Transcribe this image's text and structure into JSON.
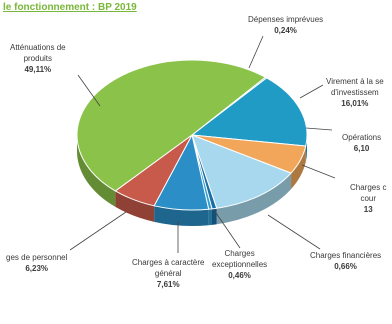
{
  "title": "le fonctionnement : BP 2019",
  "chart_data": {
    "type": "pie",
    "title": "le fonctionnement : BP 2019",
    "slices": [
      {
        "label": "Dépenses imprévues",
        "value": 0.24,
        "value_label": "0,24%",
        "color": "#1f8bbf"
      },
      {
        "label": "Virement à la section d'investissement",
        "value": 16.01,
        "value_label": "16,01%",
        "color": "#1f9bc5"
      },
      {
        "label": "Opérations d'ordre",
        "value": 6.1,
        "value_label": "6,10",
        "color": "#f2a65a"
      },
      {
        "label": "Charges de gestion courante",
        "value": 13.0,
        "value_label": "13",
        "color": "#a8d8ee"
      },
      {
        "label": "Charges financières",
        "value": 0.66,
        "value_label": "0,66%",
        "color": "#1b6fa8"
      },
      {
        "label": "Charges exceptionnelles",
        "value": 0.46,
        "value_label": "0,46%",
        "color": "#2f9fd0"
      },
      {
        "label": "Charges à caractère général",
        "value": 7.61,
        "value_label": "7,61%",
        "color": "#2b8ec6"
      },
      {
        "label": "Charges de personnel",
        "value": 6.23,
        "value_label": "6,23%",
        "color": "#c75a4a"
      },
      {
        "label": "Atténuations de produits",
        "value": 49.11,
        "value_label": "49,11%",
        "color": "#8bc34a"
      }
    ]
  },
  "labels": {
    "depenses": {
      "text": "Dépenses imprévues",
      "value": "0,24%"
    },
    "virement": {
      "line1": "Virement à la se",
      "line2": "d'investissem",
      "value": "16,01%"
    },
    "operations": {
      "text": "Opérations",
      "value": "6,10"
    },
    "gestion": {
      "line1": "Charges c",
      "line2": "cour",
      "value": "13"
    },
    "financieres": {
      "text": "Charges financières",
      "value": "0,66%"
    },
    "exceptionnelles": {
      "line1": "Charges",
      "line2": "exceptionnelles",
      "value": "0,46%"
    },
    "general": {
      "line1": "Charges à caractère",
      "line2": "général",
      "value": "7,61%"
    },
    "personnel": {
      "text": "ges de personnel",
      "value": "6,23%"
    },
    "attenuations": {
      "line1": "Atténuations de",
      "line2": "produits",
      "value": "49,11%"
    }
  }
}
